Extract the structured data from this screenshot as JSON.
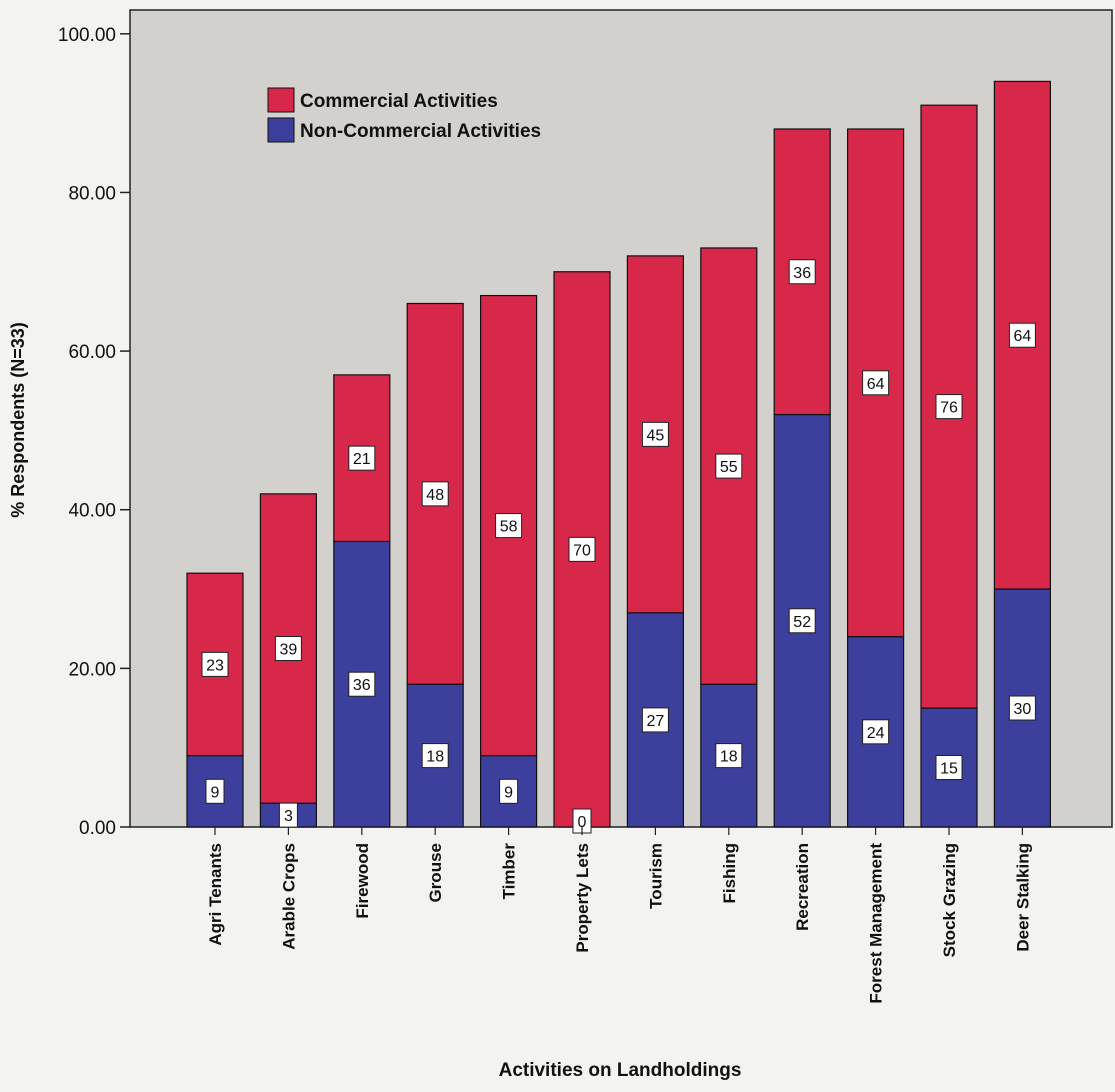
{
  "chart_data": {
    "type": "bar",
    "stacked": true,
    "categories": [
      "Agri Tenants",
      "Arable Crops",
      "Firewood",
      "Grouse",
      "Timber",
      "Property Lets",
      "Tourism",
      "Fishing",
      "Recreation",
      "Forest Management",
      "Stock Grazing",
      "Deer Stalking"
    ],
    "series": [
      {
        "name": "Non-Commercial Activities",
        "color": "#3d3f9c",
        "values": [
          9,
          3,
          36,
          18,
          9,
          0,
          27,
          18,
          52,
          24,
          15,
          30
        ],
        "labels": [
          "9",
          "3",
          "36",
          "18",
          "9",
          "0",
          "27",
          "18",
          "52",
          "24",
          "15",
          "30"
        ]
      },
      {
        "name": "Commercial Activities",
        "color": "#d8284a",
        "values": [
          23,
          39,
          21,
          48,
          58,
          70,
          45,
          55,
          36,
          64,
          76,
          64
        ],
        "labels": [
          "23",
          "39",
          "21",
          "48",
          "58",
          "70",
          "45",
          "55",
          "36",
          "64",
          "76",
          "64"
        ]
      }
    ],
    "xlabel": "Activities on Landholdings",
    "ylabel": "% Respondents (N=33)",
    "ylim": [
      0,
      103
    ],
    "yticks": [
      0,
      20,
      40,
      60,
      80,
      100
    ],
    "ytick_labels": [
      "0.00",
      "20.00",
      "40.00",
      "60.00",
      "80.00",
      "100.00"
    ],
    "legend_position": "top-left",
    "grid": false
  }
}
